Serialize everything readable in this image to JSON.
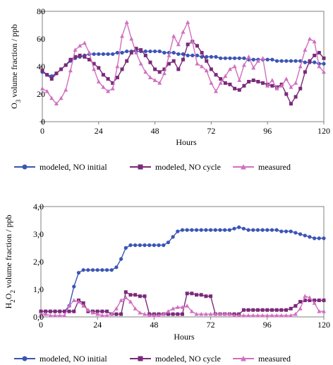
{
  "chart_data": [
    {
      "type": "line",
      "title": "",
      "xlabel": "Hours",
      "ylabel": "O3 volume fraction / ppb",
      "ylabel_parts": {
        "main": "O",
        "sub": "3",
        "rest": " volume fraction / ppb"
      },
      "xlim": [
        0,
        120
      ],
      "ylim": [
        0,
        80
      ],
      "xticks": [
        0,
        24,
        48,
        72,
        96,
        120
      ],
      "yticks": [
        0,
        20,
        40,
        60,
        80
      ],
      "ytick_labels": [
        "0",
        "20",
        "40",
        "60",
        "80"
      ],
      "grid": false,
      "legend": "bottom",
      "series": [
        {
          "name": "modeled, NO initial",
          "color": "#3a55b4",
          "marker": "circle",
          "x": [
            0,
            2,
            4,
            6,
            8,
            10,
            12,
            14,
            16,
            18,
            20,
            22,
            24,
            26,
            28,
            30,
            32,
            34,
            36,
            38,
            40,
            42,
            44,
            46,
            48,
            50,
            52,
            54,
            56,
            58,
            60,
            62,
            64,
            66,
            68,
            70,
            72,
            74,
            76,
            78,
            80,
            82,
            84,
            86,
            88,
            90,
            92,
            94,
            96,
            98,
            100,
            102,
            104,
            106,
            108,
            110,
            112,
            114,
            116,
            118,
            120
          ],
          "values": [
            36,
            34,
            33,
            35,
            38,
            41,
            44,
            46,
            47,
            48,
            49,
            49,
            49,
            49,
            49,
            49,
            50,
            50,
            51,
            51,
            51,
            51,
            51,
            51,
            51,
            51,
            50,
            50,
            50,
            49,
            49,
            48,
            48,
            48,
            47,
            47,
            47,
            47,
            46,
            46,
            46,
            46,
            46,
            46,
            45,
            45,
            45,
            45,
            45,
            45,
            44,
            44,
            44,
            44,
            44,
            44,
            43,
            43,
            43,
            42,
            42
          ]
        },
        {
          "name": "modeled, NO cycle",
          "color": "#7a2a7a",
          "marker": "square",
          "x": [
            0,
            2,
            4,
            6,
            8,
            10,
            12,
            14,
            16,
            18,
            20,
            22,
            24,
            26,
            28,
            30,
            32,
            34,
            36,
            38,
            40,
            42,
            44,
            46,
            48,
            50,
            52,
            54,
            56,
            58,
            60,
            62,
            64,
            66,
            68,
            70,
            72,
            74,
            76,
            78,
            80,
            82,
            84,
            86,
            88,
            90,
            92,
            94,
            96,
            98,
            100,
            102,
            104,
            106,
            108,
            110,
            112,
            114,
            116,
            118,
            120
          ],
          "values": [
            37,
            34,
            31,
            35,
            38,
            41,
            45,
            47,
            48,
            47,
            45,
            42,
            39,
            34,
            31,
            28,
            32,
            38,
            44,
            50,
            53,
            52,
            48,
            43,
            38,
            36,
            38,
            42,
            44,
            38,
            45,
            56,
            58,
            55,
            50,
            44,
            38,
            34,
            31,
            28,
            27,
            24,
            23,
            26,
            29,
            30,
            29,
            28,
            27,
            26,
            25,
            27,
            20,
            13,
            18,
            24,
            36,
            44,
            48,
            50,
            46
          ]
        },
        {
          "name": "measured",
          "color": "#d070c0",
          "marker": "triangle",
          "x": [
            0,
            2,
            4,
            6,
            8,
            10,
            12,
            14,
            16,
            18,
            20,
            22,
            24,
            26,
            28,
            30,
            32,
            34,
            36,
            38,
            40,
            42,
            44,
            46,
            48,
            50,
            52,
            54,
            56,
            58,
            60,
            62,
            64,
            66,
            68,
            70,
            72,
            74,
            76,
            78,
            80,
            82,
            84,
            86,
            88,
            90,
            92,
            94,
            96,
            98,
            100,
            102,
            104,
            106,
            108,
            110,
            112,
            114,
            116,
            118,
            120
          ],
          "values": [
            24,
            22,
            17,
            13,
            17,
            23,
            37,
            52,
            55,
            57,
            50,
            38,
            29,
            25,
            22,
            24,
            40,
            62,
            72,
            60,
            50,
            42,
            36,
            32,
            30,
            28,
            35,
            48,
            62,
            56,
            65,
            72,
            58,
            42,
            40,
            37,
            28,
            22,
            28,
            33,
            38,
            40,
            30,
            41,
            47,
            39,
            44,
            46,
            26,
            30,
            24,
            26,
            31,
            25,
            28,
            40,
            52,
            60,
            58,
            40,
            36
          ]
        }
      ]
    },
    {
      "type": "line",
      "title": "",
      "xlabel": "Hours",
      "ylabel": "H2O2 volume fraction / ppb",
      "ylabel_parts": {
        "main": "H",
        "sub": "2",
        "mid": "O",
        "sub2": "2",
        "rest": " volume fraction / ppb"
      },
      "xlim": [
        0,
        120
      ],
      "ylim": [
        0,
        4
      ],
      "xticks": [
        0,
        24,
        48,
        72,
        96,
        120
      ],
      "yticks": [
        0,
        1,
        2,
        3,
        4
      ],
      "ytick_labels": [
        "0,0",
        "1,0",
        "2,0",
        "3,0",
        "4,0"
      ],
      "grid": false,
      "legend": "bottom",
      "series": [
        {
          "name": "modeled, NO initial",
          "color": "#3a55b4",
          "marker": "circle",
          "x": [
            0,
            2,
            4,
            6,
            8,
            10,
            12,
            14,
            16,
            18,
            20,
            22,
            24,
            26,
            28,
            30,
            32,
            34,
            36,
            38,
            40,
            42,
            44,
            46,
            48,
            50,
            52,
            54,
            56,
            58,
            60,
            62,
            64,
            66,
            68,
            70,
            72,
            74,
            76,
            78,
            80,
            82,
            84,
            86,
            88,
            90,
            92,
            94,
            96,
            98,
            100,
            102,
            104,
            106,
            108,
            110,
            112,
            114,
            116,
            118,
            120
          ],
          "values": [
            0.2,
            0.2,
            0.2,
            0.2,
            0.2,
            0.2,
            0.4,
            1.1,
            1.6,
            1.7,
            1.7,
            1.7,
            1.7,
            1.7,
            1.7,
            1.7,
            1.8,
            2.1,
            2.5,
            2.6,
            2.6,
            2.6,
            2.6,
            2.6,
            2.6,
            2.6,
            2.6,
            2.7,
            2.9,
            3.1,
            3.15,
            3.15,
            3.15,
            3.15,
            3.15,
            3.15,
            3.15,
            3.15,
            3.15,
            3.15,
            3.15,
            3.2,
            3.25,
            3.2,
            3.15,
            3.15,
            3.15,
            3.15,
            3.15,
            3.15,
            3.15,
            3.1,
            3.1,
            3.1,
            3.05,
            3.0,
            2.95,
            2.9,
            2.85,
            2.85,
            2.85
          ]
        },
        {
          "name": "modeled, NO cycle",
          "color": "#7a2a7a",
          "marker": "square",
          "x": [
            0,
            2,
            4,
            6,
            8,
            10,
            12,
            14,
            16,
            18,
            20,
            22,
            24,
            26,
            28,
            30,
            32,
            34,
            36,
            38,
            40,
            42,
            44,
            46,
            48,
            50,
            52,
            54,
            56,
            58,
            60,
            62,
            64,
            66,
            68,
            70,
            72,
            74,
            76,
            78,
            80,
            82,
            84,
            86,
            88,
            90,
            92,
            94,
            96,
            98,
            100,
            102,
            104,
            106,
            108,
            110,
            112,
            114,
            116,
            118,
            120
          ],
          "values": [
            0.2,
            0.2,
            0.2,
            0.2,
            0.2,
            0.2,
            0.2,
            0.2,
            0.6,
            0.5,
            0.2,
            0.2,
            0.2,
            0.2,
            0.2,
            0.1,
            0.1,
            0.1,
            0.9,
            0.8,
            0.8,
            0.75,
            0.75,
            0.1,
            0.1,
            0.1,
            0.1,
            0.1,
            0.1,
            0.1,
            0.1,
            0.85,
            0.85,
            0.8,
            0.8,
            0.75,
            0.75,
            0.1,
            0.1,
            0.1,
            0.1,
            0.1,
            0.1,
            0.25,
            0.25,
            0.25,
            0.25,
            0.25,
            0.25,
            0.25,
            0.25,
            0.25,
            0.25,
            0.3,
            0.4,
            0.55,
            0.6,
            0.6,
            0.6,
            0.6,
            0.6
          ]
        },
        {
          "name": "measured",
          "color": "#d070c0",
          "marker": "triangle",
          "x": [
            0,
            2,
            4,
            6,
            8,
            10,
            12,
            14,
            16,
            18,
            20,
            22,
            24,
            26,
            28,
            30,
            32,
            34,
            36,
            38,
            40,
            42,
            44,
            46,
            48,
            50,
            52,
            54,
            56,
            58,
            60,
            62,
            64,
            66,
            68,
            70,
            72,
            74,
            76,
            78,
            80,
            82,
            84,
            86,
            88,
            90,
            92,
            94,
            96,
            98,
            100,
            102,
            104,
            106,
            108,
            110,
            112,
            114,
            116,
            118,
            120
          ],
          "values": [
            0.1,
            0.1,
            0.05,
            0.05,
            0.05,
            0.05,
            0.4,
            0.6,
            0.55,
            0.4,
            0.25,
            0.15,
            0.1,
            0.05,
            0.05,
            0.1,
            0.3,
            0.6,
            0.7,
            0.55,
            0.3,
            0.15,
            0.1,
            0.05,
            0.05,
            0.05,
            0.1,
            0.2,
            0.3,
            0.35,
            0.35,
            0.4,
            0.2,
            0.1,
            0.1,
            0.1,
            0.1,
            0.1,
            0.1,
            0.1,
            0.1,
            0.05,
            0.05,
            0.05,
            0.05,
            0.05,
            0.05,
            0.05,
            0.05,
            0.05,
            0.05,
            0.05,
            0.05,
            0.05,
            0.1,
            0.3,
            0.75,
            0.7,
            0.5,
            0.2,
            0.2
          ]
        }
      ]
    }
  ]
}
